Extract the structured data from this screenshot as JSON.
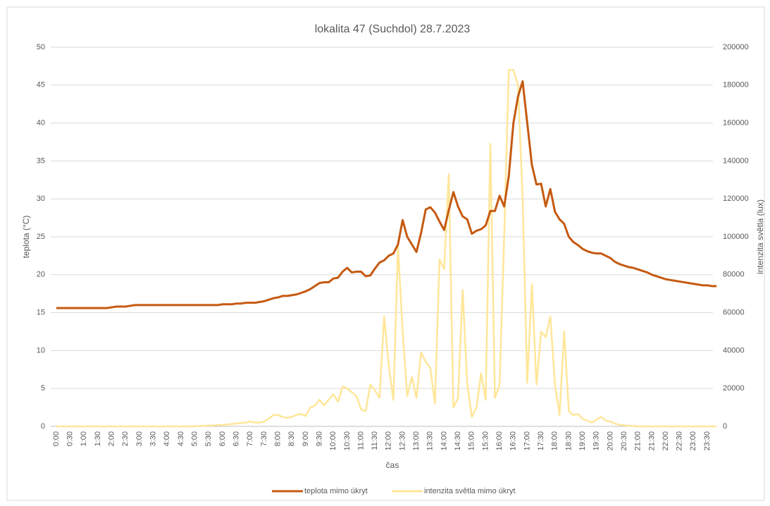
{
  "chart_data": {
    "type": "line",
    "title": "lokalita 47 (Suchdol) 28.7.2023",
    "x_label": "čas",
    "y_label": "teplota (°C)",
    "y2_label": "intenzita světla (lux)",
    "categories": [
      "0:00",
      null,
      null,
      "0:30",
      null,
      null,
      "1:00",
      null,
      null,
      "1:30",
      null,
      null,
      "2:00",
      null,
      null,
      "2:30",
      null,
      null,
      "3:00",
      null,
      null,
      "3:30",
      null,
      null,
      "4:00",
      null,
      null,
      "4:30",
      null,
      null,
      "5:00",
      null,
      null,
      "5:30",
      null,
      null,
      "6:00",
      null,
      null,
      "6:30",
      null,
      null,
      "7:00",
      null,
      null,
      "7:30",
      null,
      null,
      "8:00",
      null,
      null,
      "8:30",
      null,
      null,
      "9:00",
      null,
      null,
      "9:30",
      null,
      null,
      "10:00",
      null,
      null,
      "10:30",
      null,
      null,
      "11:00",
      null,
      null,
      "11:30",
      null,
      null,
      "12:00",
      null,
      null,
      "12:30",
      null,
      null,
      "13:00",
      null,
      null,
      "13:30",
      null,
      null,
      "14:00",
      null,
      null,
      "14:30",
      null,
      null,
      "15:00",
      null,
      null,
      "15:30",
      null,
      null,
      "16:00",
      null,
      null,
      "16:30",
      null,
      null,
      "17:00",
      null,
      null,
      "17:30",
      null,
      null,
      "18:00",
      null,
      null,
      "18:30",
      null,
      null,
      "19:00",
      null,
      null,
      "19:30",
      null,
      null,
      "20:00",
      null,
      null,
      "20:30",
      null,
      null,
      "21:00",
      null,
      null,
      "21:30",
      null,
      null,
      "22:00",
      null,
      null,
      "22:30",
      null,
      null,
      "23:00",
      null,
      null,
      "23:30",
      null,
      null
    ],
    "series": [
      {
        "name": "teplota mimo úkryt",
        "color": "#c55a11",
        "values": [
          15.6,
          15.6,
          15.6,
          15.6,
          15.6,
          15.6,
          15.6,
          15.6,
          15.6,
          15.6,
          15.6,
          15.6,
          15.7,
          15.8,
          15.8,
          15.8,
          15.9,
          16.0,
          16,
          16,
          16,
          16,
          16,
          16,
          16,
          16,
          16,
          16,
          16,
          16,
          16,
          16,
          16,
          16,
          16,
          16,
          16.1,
          16.1,
          16.1,
          16.2,
          16.2,
          16.3,
          16.3,
          16.3,
          16.4,
          16.5,
          16.7,
          16.9,
          17.0,
          17.2,
          17.2,
          17.3,
          17.4,
          17.6,
          17.8,
          18.1,
          18.5,
          18.9,
          19.0,
          19.0,
          19.5,
          19.6,
          20.4,
          20.9,
          20.3,
          20.4,
          20.4,
          19.8,
          19.9,
          20.8,
          21.6,
          21.9,
          22.5,
          22.8,
          24.0,
          27.2,
          25.0,
          24.0,
          23.0,
          25.5,
          28.6,
          28.9,
          28.2,
          27.0,
          25.9,
          28.5,
          30.9,
          29.0,
          27.7,
          27.3,
          25.4,
          25.8,
          26.0,
          26.5,
          28.4,
          28.4,
          30.4,
          29.0,
          33.0,
          40.0,
          43.5,
          45.5,
          40.0,
          34.5,
          31.9,
          32.0,
          29.0,
          31.3,
          28.3,
          27.3,
          26.7,
          25.0,
          24.3,
          23.9,
          23.4,
          23.1,
          22.9,
          22.8,
          22.8,
          22.5,
          22.2,
          21.7,
          21.4,
          21.2,
          21.0,
          20.9,
          20.7,
          20.5,
          20.3,
          20.0,
          19.8,
          19.6,
          19.4,
          19.3,
          19.2,
          19.1,
          19.0,
          18.9,
          18.8,
          18.7,
          18.6,
          18.6,
          18.5,
          18.5
        ]
      },
      {
        "name": "intenzita světla mimo úkryt",
        "color": "#ffe699",
        "axis": "y2",
        "values": [
          0,
          0,
          0,
          0,
          0,
          0,
          0,
          0,
          0,
          0,
          0,
          0,
          0,
          0,
          0,
          0,
          0,
          0,
          0,
          0,
          0,
          0,
          0,
          0,
          0,
          0,
          0,
          0,
          0,
          0,
          100,
          200,
          300,
          400,
          500,
          700,
          800,
          1000,
          1200,
          1500,
          1800,
          2000,
          2500,
          2000,
          2000,
          2500,
          4000,
          6000,
          6000,
          5000,
          4500,
          5000,
          6000,
          6500,
          5500,
          10000,
          11000,
          14000,
          11000,
          14000,
          17000,
          13000,
          21000,
          20000,
          18000,
          16000,
          9000,
          8000,
          22000,
          19000,
          15000,
          58000,
          32000,
          14000,
          95000,
          50000,
          16000,
          26000,
          15000,
          39000,
          34000,
          31000,
          12000,
          88000,
          83000,
          133000,
          10000,
          15000,
          72000,
          22000,
          5000,
          10000,
          28000,
          14000,
          149000,
          15000,
          22000,
          100000,
          188000,
          188000,
          180000,
          120000,
          23000,
          75000,
          22000,
          50000,
          47000,
          58000,
          22000,
          6000,
          50000,
          8000,
          6000,
          6500,
          4000,
          3000,
          2000,
          3500,
          5000,
          3000,
          2500,
          1500,
          800,
          500,
          300,
          200,
          0,
          0,
          0,
          0,
          0,
          0,
          0,
          0,
          0,
          0,
          0,
          0,
          0,
          0,
          0,
          0,
          0,
          0
        ]
      }
    ],
    "ylim": [
      0,
      50
    ],
    "yticks": [
      0,
      5,
      10,
      15,
      20,
      25,
      30,
      35,
      40,
      45,
      50
    ],
    "y2lim": [
      0,
      200000
    ],
    "y2ticks": [
      0,
      20000,
      40000,
      60000,
      80000,
      100000,
      120000,
      140000,
      160000,
      180000,
      200000
    ],
    "grid": true,
    "legend": "bottom"
  }
}
